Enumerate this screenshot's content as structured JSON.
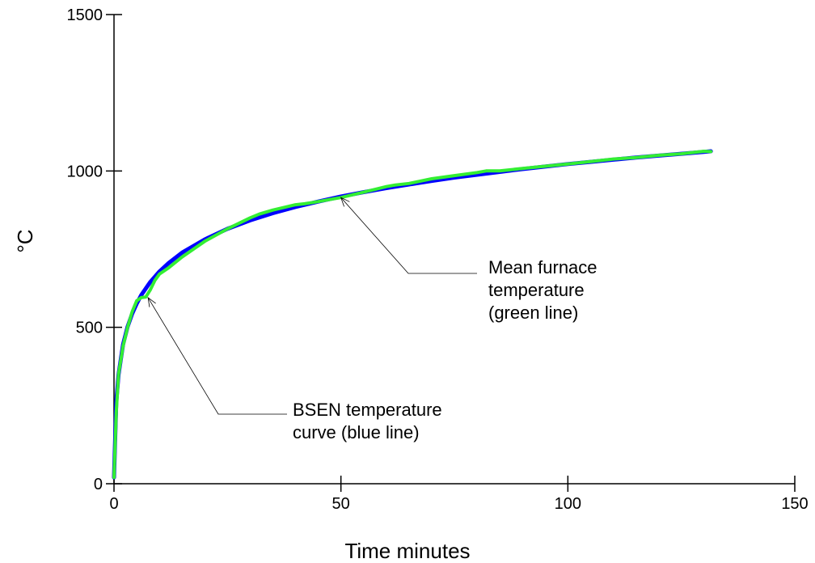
{
  "chart_data": {
    "type": "line",
    "title": "",
    "xlabel": "Time minutes",
    "ylabel": "°C",
    "xlim": [
      0,
      150
    ],
    "ylim": [
      0,
      1500
    ],
    "x_ticks": [
      0,
      50,
      100,
      150
    ],
    "y_ticks": [
      0,
      500,
      1000,
      1500
    ],
    "grid": false,
    "series": [
      {
        "color": "#0000ff",
        "x": [
          0,
          0.5,
          1,
          2,
          3,
          4,
          5,
          6,
          8,
          10,
          12,
          15,
          20,
          25,
          30,
          35,
          40,
          45,
          50,
          55,
          60,
          65,
          70,
          75,
          80,
          85,
          90,
          95,
          100,
          105,
          110,
          115,
          120,
          125,
          130,
          131.5
        ],
        "y": [
          20,
          261,
          349,
          445,
          502,
          544,
          576,
          603,
          645,
          678,
          705,
          739,
          781,
          815,
          842,
          865,
          885,
          902,
          918,
          932,
          945,
          957,
          968,
          979,
          988,
          997,
          1006,
          1014,
          1022,
          1029,
          1036,
          1043,
          1049,
          1055,
          1061,
          1063
        ]
      },
      {
        "color": "#33ee33",
        "x": [
          0,
          0.5,
          1,
          2,
          3,
          4,
          5,
          6,
          7,
          8,
          9,
          10,
          12,
          15,
          18,
          20,
          25,
          30,
          32,
          35,
          40,
          42,
          45,
          50,
          55,
          60,
          62,
          65,
          70,
          75,
          80,
          82,
          85,
          90,
          95,
          100,
          105,
          110,
          115,
          120,
          125,
          130,
          131.5
        ],
        "y": [
          20,
          230,
          350,
          440,
          500,
          550,
          585,
          595,
          597,
          620,
          650,
          670,
          690,
          725,
          755,
          775,
          815,
          850,
          862,
          875,
          892,
          895,
          902,
          915,
          932,
          950,
          955,
          960,
          975,
          985,
          995,
          1000,
          1000,
          1008,
          1015,
          1022,
          1030,
          1038,
          1043,
          1050,
          1055,
          1063,
          1062
        ]
      }
    ],
    "annotations": [
      {
        "text": [
          "BSEN temperature",
          "curve (blue line)"
        ],
        "target": [
          7.5,
          595
        ]
      },
      {
        "text": [
          "Mean furnace",
          "temperature",
          "(green line)"
        ],
        "target": [
          50,
          915
        ]
      }
    ]
  }
}
